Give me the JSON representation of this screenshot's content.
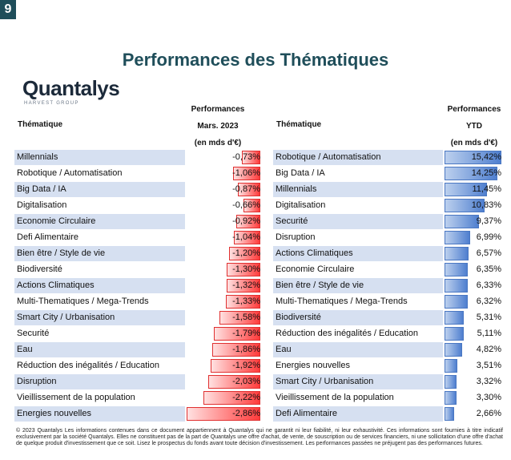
{
  "badge": "9",
  "title": "Performances des Thématiques",
  "logo": {
    "name": "Quantalys",
    "subtitle": "HARVEST GROUP"
  },
  "left_table": {
    "col_thematique": "Thématique",
    "col_perf_line1": "Performances",
    "col_perf_line2": "Mars. 2023",
    "col_perf_line3": "(en mds d'€)",
    "max_abs": 2.86,
    "rows": [
      {
        "name": "Millennials",
        "value": -0.73,
        "label": "-0,73%"
      },
      {
        "name": "Robotique / Automatisation",
        "value": -1.06,
        "label": "-1,06%"
      },
      {
        "name": "Big Data / IA",
        "value": -0.87,
        "label": "-0,87%"
      },
      {
        "name": "Digitalisation",
        "value": -0.66,
        "label": "-0,66%"
      },
      {
        "name": "Economie Circulaire",
        "value": -0.92,
        "label": "-0,92%"
      },
      {
        "name": "Defi Alimentaire",
        "value": -1.04,
        "label": "-1,04%"
      },
      {
        "name": "Bien être / Style de vie",
        "value": -1.2,
        "label": "-1,20%"
      },
      {
        "name": "Biodiversité",
        "value": -1.3,
        "label": "-1,30%"
      },
      {
        "name": "Actions Climatiques",
        "value": -1.32,
        "label": "-1,32%"
      },
      {
        "name": "Multi-Thematiques / Mega-Trends",
        "value": -1.33,
        "label": "-1,33%"
      },
      {
        "name": "Smart City / Urbanisation",
        "value": -1.58,
        "label": "-1,58%"
      },
      {
        "name": "Securité",
        "value": -1.79,
        "label": "-1,79%"
      },
      {
        "name": "Eau",
        "value": -1.86,
        "label": "-1,86%"
      },
      {
        "name": "Réduction des inégalités / Education",
        "value": -1.92,
        "label": "-1,92%"
      },
      {
        "name": "Disruption",
        "value": -2.03,
        "label": "-2,03%"
      },
      {
        "name": "Vieillissement de la population",
        "value": -2.22,
        "label": "-2,22%"
      },
      {
        "name": "Energies nouvelles",
        "value": -2.86,
        "label": "-2,86%"
      }
    ]
  },
  "right_table": {
    "col_thematique": "Thématique",
    "col_perf_line1": "Performances",
    "col_perf_line2": "YTD",
    "col_perf_line3": "(en mds d'€)",
    "max_abs": 15.42,
    "rows": [
      {
        "name": "Robotique / Automatisation",
        "value": 15.42,
        "label": "15,42%"
      },
      {
        "name": "Big Data / IA",
        "value": 14.25,
        "label": "14,25%"
      },
      {
        "name": "Millennials",
        "value": 11.45,
        "label": "11,45%"
      },
      {
        "name": "Digitalisation",
        "value": 10.83,
        "label": "10,83%"
      },
      {
        "name": "Securité",
        "value": 9.37,
        "label": "9,37%"
      },
      {
        "name": "Disruption",
        "value": 6.99,
        "label": "6,99%"
      },
      {
        "name": "Actions Climatiques",
        "value": 6.57,
        "label": "6,57%"
      },
      {
        "name": "Economie Circulaire",
        "value": 6.35,
        "label": "6,35%"
      },
      {
        "name": "Bien être / Style de vie",
        "value": 6.33,
        "label": "6,33%"
      },
      {
        "name": "Multi-Thematiques / Mega-Trends",
        "value": 6.32,
        "label": "6,32%"
      },
      {
        "name": "Biodiversité",
        "value": 5.31,
        "label": "5,31%"
      },
      {
        "name": "Réduction des inégalités / Education",
        "value": 5.11,
        "label": "5,11%"
      },
      {
        "name": "Eau",
        "value": 4.82,
        "label": "4,82%"
      },
      {
        "name": "Energies nouvelles",
        "value": 3.51,
        "label": "3,51%"
      },
      {
        "name": "Smart City / Urbanisation",
        "value": 3.32,
        "label": "3,32%"
      },
      {
        "name": "Vieillissement de la population",
        "value": 3.3,
        "label": "3,30%"
      },
      {
        "name": "Defi Alimentaire",
        "value": 2.66,
        "label": "2,66%"
      }
    ]
  },
  "colors": {
    "negative_bar": "#ff3b3b",
    "positive_bar": "#4f7fcf",
    "title": "#1f4e5a",
    "row_stripe": "#d6e0f1"
  },
  "disclaimer": "© 2023 Quantalys Les informations contenues dans ce document appartiennent à Quantalys qui ne garantit ni leur fiabilité, ni leur exhaustivité. Ces informations sont fournies à titre indicatif exclusivement par la société Quantalys. Elles ne constituent pas de la part de Quantalys une offre d'achat, de vente, de souscription ou de services financiers, ni une sollicitation d'une offre d'achat de quelque produit d'investissement que ce soit. Lisez le prospectus du fonds avant toute décision d'investissement. Les performances passées ne préjugent pas des performances futures."
}
